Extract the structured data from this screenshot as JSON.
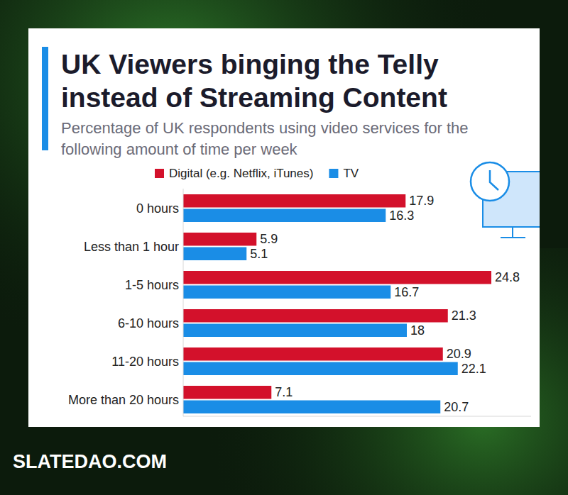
{
  "chart_data": {
    "type": "bar",
    "orientation": "horizontal",
    "title": "UK Viewers binging the Telly instead of Streaming Content",
    "subtitle": "Percentage of UK respondents using video services for the following amount of time per week",
    "source": "SLATEDAO.COM",
    "categories": [
      "0 hours",
      "Less than 1 hour",
      "1-5 hours",
      "6-10 hours",
      "11-20 hours",
      "More than 20 hours"
    ],
    "series": [
      {
        "name": "Digital (e.g. Netflix, iTunes)",
        "color": "#d3112b",
        "values": [
          17.9,
          5.9,
          24.8,
          21.3,
          20.9,
          7.1
        ]
      },
      {
        "name": "TV",
        "color": "#1a8de6",
        "values": [
          16.3,
          5.1,
          16.7,
          18.0,
          22.1,
          20.7
        ]
      }
    ],
    "xlim": [
      0,
      28
    ],
    "data_labels": true,
    "tick_labels": false,
    "grid": false,
    "legend": "top"
  }
}
